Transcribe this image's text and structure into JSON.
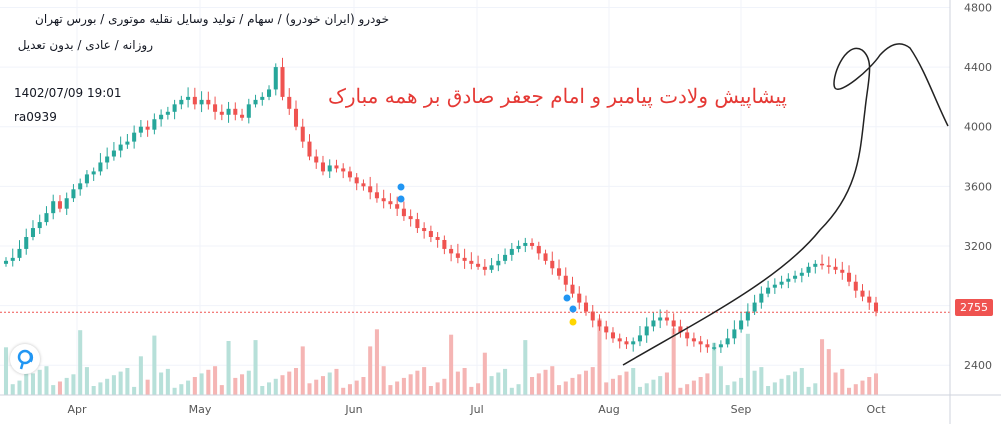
{
  "header": {
    "line1": "خودرو (ایران خودرو) / سهام / تولید وسایل نقلیه موتوری / بورس تهران",
    "line2": "روزانه / عادی / بدون تعدیل"
  },
  "meta": {
    "timestamp": "1402/07/09 19:01",
    "author": "ra0939"
  },
  "annotation_text": "پیشاپیش ولادت پیامبر و امام جعفر صادق بر همه مبارک",
  "last_price_label": "2755",
  "colors": {
    "up": "#26a69a",
    "down": "#ef5350",
    "vol_up": "#b7e0d9",
    "vol_down": "#f5b5b4",
    "annotation": "#e53935",
    "marker_blue": "#2196f3",
    "marker_yellow": "#ffd600"
  },
  "chart_data": {
    "type": "candlestick",
    "x_tick_labels": [
      "Apr",
      "May",
      "Jun",
      "Jul",
      "Aug",
      "Sep",
      "Oct"
    ],
    "y_ticks": [
      2400,
      2800,
      3200,
      3600,
      4000,
      4400,
      4800
    ],
    "y_tick_labels": [
      "2400",
      "2800",
      "3200",
      "3600",
      "4000",
      "4400",
      "4800"
    ],
    "ylim": [
      2200,
      4850
    ],
    "last_price": 2755,
    "grid": true,
    "series": {
      "close": [
        3100,
        3120,
        3180,
        3260,
        3320,
        3360,
        3420,
        3500,
        3450,
        3520,
        3580,
        3620,
        3680,
        3700,
        3760,
        3800,
        3840,
        3880,
        3900,
        3960,
        4000,
        3980,
        4050,
        4080,
        4100,
        4150,
        4180,
        4200,
        4150,
        4180,
        4150,
        4100,
        4080,
        4120,
        4080,
        4060,
        4150,
        4180,
        4200,
        4250,
        4400,
        4200,
        4120,
        4000,
        3900,
        3800,
        3760,
        3700,
        3740,
        3720,
        3700,
        3660,
        3620,
        3600,
        3560,
        3520,
        3500,
        3480,
        3450,
        3400,
        3380,
        3320,
        3300,
        3260,
        3240,
        3180,
        3150,
        3120,
        3100,
        3080,
        3060,
        3040,
        3070,
        3100,
        3140,
        3180,
        3200,
        3220,
        3200,
        3150,
        3100,
        3050,
        3000,
        2940,
        2880,
        2820,
        2760,
        2700,
        2660,
        2620,
        2580,
        2560,
        2540,
        2560,
        2600,
        2660,
        2700,
        2720,
        2700,
        2660,
        2620,
        2580,
        2560,
        2540,
        2520,
        2520,
        2540,
        2580,
        2640,
        2700,
        2760,
        2820,
        2880,
        2920,
        2940,
        2960,
        2980,
        3000,
        3020,
        3060,
        3080,
        3070,
        3060,
        3040,
        3020,
        2960,
        2900,
        2860,
        2820,
        2760
      ]
    },
    "volume_scale": "relative",
    "markers": [
      {
        "color": "blue",
        "x_month": "Jun",
        "value": 3580
      },
      {
        "color": "blue",
        "x_month": "Jun",
        "value": 3500
      },
      {
        "color": "blue",
        "x_month": "Jul",
        "value": 2800
      },
      {
        "color": "blue",
        "x_month": "Jul",
        "value": 2720
      },
      {
        "color": "yellow",
        "x_month": "Jul",
        "value": 2650
      }
    ]
  }
}
